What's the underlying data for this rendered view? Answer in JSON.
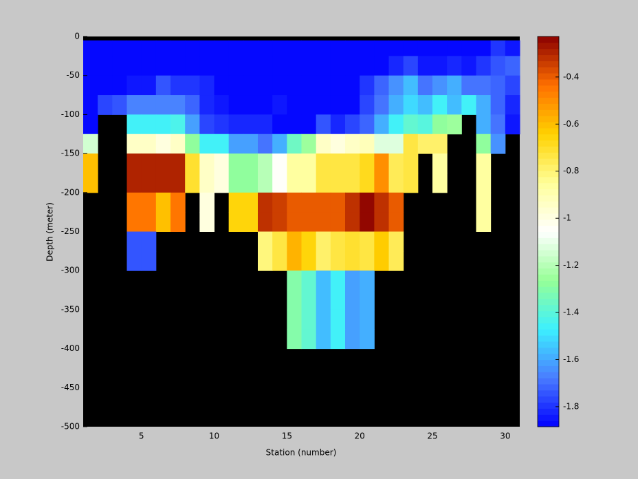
{
  "chart_data": {
    "type": "heatmap",
    "xlabel": "Station (number)",
    "ylabel": "Depth (meter)",
    "x": [
      1,
      2,
      3,
      4,
      5,
      6,
      7,
      8,
      9,
      10,
      11,
      12,
      13,
      14,
      15,
      16,
      17,
      18,
      19,
      20,
      21,
      22,
      23,
      24,
      25,
      26,
      27,
      28,
      29,
      30,
      31
    ],
    "y": [
      -5,
      -25,
      -50,
      -75,
      -100,
      -125,
      -150,
      -175,
      -200,
      -225,
      -250,
      -275,
      -300,
      -325,
      -350,
      -375,
      -400
    ],
    "z": [
      [
        -1.88,
        -1.88,
        -1.88,
        -1.88,
        -1.88,
        -1.88,
        -1.88,
        -1.88,
        -1.88,
        -1.88,
        -1.88,
        -1.88,
        -1.88,
        -1.88,
        -1.88,
        -1.88,
        -1.88,
        -1.88,
        -1.88,
        -1.88,
        -1.88,
        -1.88,
        -1.88,
        -1.88,
        -1.88,
        -1.88,
        -1.88,
        -1.88,
        -1.8,
        -1.85
      ],
      [
        -1.88,
        -1.88,
        -1.88,
        -1.88,
        -1.88,
        -1.88,
        -1.88,
        -1.88,
        -1.88,
        -1.88,
        -1.88,
        -1.88,
        -1.88,
        -1.88,
        -1.88,
        -1.88,
        -1.88,
        -1.88,
        -1.88,
        -1.88,
        -1.88,
        -1.82,
        -1.78,
        -1.85,
        -1.85,
        -1.83,
        -1.85,
        -1.8,
        -1.75,
        -1.72
      ],
      [
        -1.88,
        -1.88,
        -1.88,
        -1.84,
        -1.84,
        -1.75,
        -1.8,
        -1.8,
        -1.82,
        -1.88,
        -1.88,
        -1.88,
        -1.88,
        -1.88,
        -1.88,
        -1.88,
        -1.88,
        -1.88,
        -1.88,
        -1.8,
        -1.72,
        -1.65,
        -1.55,
        -1.7,
        -1.65,
        -1.6,
        -1.68,
        -1.68,
        -1.72,
        -1.78
      ],
      [
        -1.86,
        -1.78,
        -1.75,
        -1.66,
        -1.66,
        -1.66,
        -1.66,
        -1.72,
        -1.82,
        -1.85,
        -1.88,
        -1.88,
        -1.88,
        -1.85,
        -1.88,
        -1.88,
        -1.88,
        -1.88,
        -1.88,
        -1.76,
        -1.7,
        -1.58,
        -1.52,
        -1.56,
        -1.47,
        -1.55,
        -1.45,
        -1.6,
        -1.72,
        -1.82
      ],
      [
        -1.86,
        null,
        null,
        -1.47,
        -1.47,
        -1.47,
        -1.42,
        -1.62,
        -1.78,
        -1.8,
        -1.82,
        -1.82,
        -1.82,
        -1.86,
        -1.86,
        -1.86,
        -1.75,
        -1.82,
        -1.76,
        -1.72,
        -1.6,
        -1.45,
        -1.38,
        -1.4,
        -1.28,
        -1.25,
        null,
        -1.6,
        -1.7,
        -1.85
      ],
      [
        -1.15,
        null,
        null,
        -0.93,
        -0.93,
        -1.0,
        -0.93,
        -1.27,
        -1.45,
        -1.45,
        -1.62,
        -1.62,
        -1.68,
        -1.58,
        -1.35,
        -1.25,
        -0.95,
        -1.0,
        -0.95,
        -0.92,
        -1.12,
        -1.12,
        -0.72,
        -0.78,
        -0.78,
        null,
        null,
        -1.27,
        -1.65,
        null
      ],
      [
        -0.6,
        null,
        null,
        -0.3,
        -0.3,
        -0.3,
        -0.3,
        -0.7,
        -0.95,
        -1.0,
        -1.27,
        -1.27,
        -1.2,
        -1.05,
        -0.85,
        -0.85,
        -0.72,
        -0.72,
        -0.72,
        -0.68,
        -0.5,
        -0.75,
        -0.72,
        null,
        -0.85,
        null,
        null,
        -0.85,
        null,
        null
      ],
      [
        -0.6,
        null,
        null,
        -0.3,
        -0.3,
        -0.3,
        -0.3,
        -0.7,
        -0.95,
        -1.0,
        -1.27,
        -1.27,
        -1.2,
        -1.05,
        -0.85,
        -0.85,
        -0.72,
        -0.72,
        -0.72,
        -0.68,
        -0.5,
        -0.75,
        -0.72,
        null,
        -0.85,
        null,
        null,
        -0.85,
        null,
        null
      ],
      [
        null,
        null,
        null,
        -0.45,
        -0.45,
        -0.6,
        -0.45,
        null,
        -1.0,
        null,
        -0.65,
        -0.65,
        -0.32,
        -0.35,
        -0.4,
        -0.4,
        -0.4,
        -0.4,
        -0.32,
        -0.25,
        -0.33,
        -0.4,
        null,
        null,
        null,
        null,
        null,
        -0.85,
        null,
        null
      ],
      [
        null,
        null,
        null,
        -0.45,
        -0.45,
        -0.6,
        -0.45,
        null,
        -1.0,
        null,
        -0.65,
        -0.65,
        -0.32,
        -0.35,
        -0.4,
        -0.4,
        -0.4,
        -0.4,
        -0.32,
        -0.25,
        -0.33,
        -0.4,
        null,
        null,
        null,
        null,
        null,
        -0.85,
        null,
        null
      ],
      [
        null,
        null,
        null,
        -1.75,
        -1.75,
        null,
        null,
        null,
        null,
        null,
        null,
        null,
        -0.82,
        -0.72,
        -0.58,
        -0.65,
        -0.78,
        -0.72,
        -0.7,
        -0.72,
        -0.62,
        -0.75,
        null,
        null,
        null,
        null,
        null,
        null,
        null,
        null
      ],
      [
        null,
        null,
        null,
        -1.75,
        -1.75,
        null,
        null,
        null,
        null,
        null,
        null,
        null,
        -0.82,
        -0.72,
        -0.58,
        -0.65,
        -0.78,
        -0.72,
        -0.7,
        -0.72,
        -0.62,
        -0.75,
        null,
        null,
        null,
        null,
        null,
        null,
        null,
        null
      ],
      [
        null,
        null,
        null,
        null,
        null,
        null,
        null,
        null,
        null,
        null,
        null,
        null,
        null,
        null,
        -1.3,
        -1.38,
        -1.55,
        -1.45,
        -1.62,
        -1.58,
        null,
        null,
        null,
        null,
        null,
        null,
        null,
        null,
        null,
        null
      ],
      [
        null,
        null,
        null,
        null,
        null,
        null,
        null,
        null,
        null,
        null,
        null,
        null,
        null,
        null,
        -1.3,
        -1.38,
        -1.55,
        -1.45,
        -1.62,
        -1.58,
        null,
        null,
        null,
        null,
        null,
        null,
        null,
        null,
        null,
        null
      ],
      [
        null,
        null,
        null,
        null,
        null,
        null,
        null,
        null,
        null,
        null,
        null,
        null,
        null,
        null,
        -1.3,
        -1.38,
        -1.55,
        -1.45,
        -1.62,
        -1.58,
        null,
        null,
        null,
        null,
        null,
        null,
        null,
        null,
        null,
        null
      ],
      [
        null,
        null,
        null,
        null,
        null,
        null,
        null,
        null,
        null,
        null,
        null,
        null,
        null,
        null,
        -1.3,
        -1.38,
        -1.55,
        -1.45,
        -1.62,
        -1.58,
        null,
        null,
        null,
        null,
        null,
        null,
        null,
        null,
        null,
        null
      ]
    ],
    "xlim": [
      1,
      31
    ],
    "xticks": [
      5,
      10,
      15,
      20,
      25,
      30
    ],
    "ylim": [
      -500,
      0
    ],
    "yticks": [
      0,
      -50,
      -100,
      -150,
      -200,
      -250,
      -300,
      -350,
      -400,
      -450,
      -500
    ],
    "clim": [
      -1.885,
      -0.228
    ],
    "cticks": [
      -1.8,
      -1.6,
      -1.4,
      -1.2,
      -1,
      -0.8,
      -0.6,
      -0.4
    ],
    "colormap": [
      "#0000ff",
      "#4a7cff",
      "#3cf0ff",
      "#96ff96",
      "#ffffff",
      "#ffff9a",
      "#ffd200",
      "#ff7000",
      "#8b0000"
    ],
    "background": "#000000"
  }
}
